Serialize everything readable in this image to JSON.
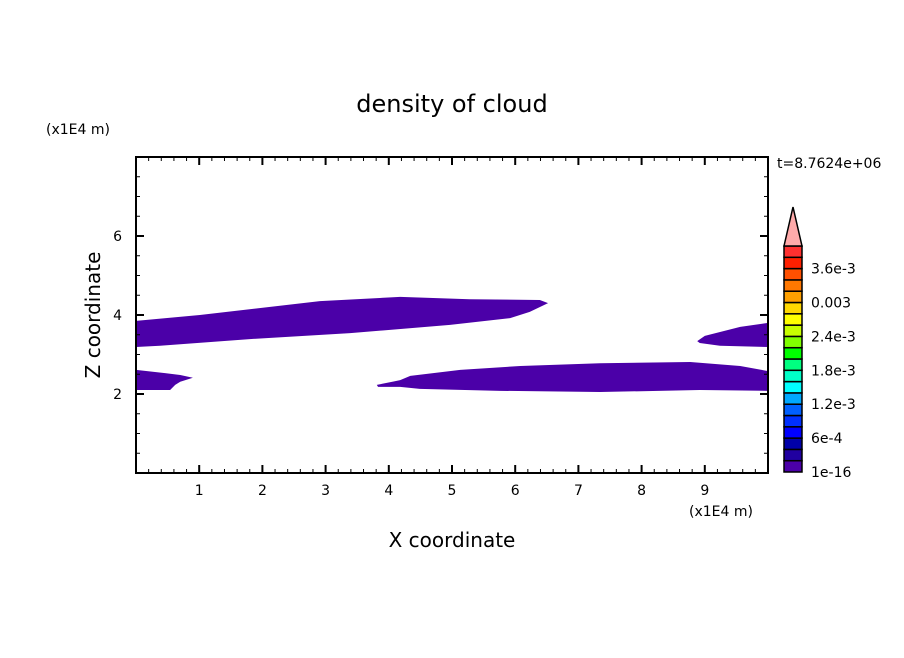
{
  "chart_data": {
    "type": "contour",
    "title": "density of cloud",
    "xlabel": "X coordinate",
    "ylabel": "Z coordinate",
    "x_unit": "(x1E4 m)",
    "y_unit": "(x1E4 m)",
    "time_label": "t=8.7624e+06",
    "xlim": [
      0,
      10
    ],
    "ylim": [
      0,
      8
    ],
    "xticks": [
      1,
      2,
      3,
      4,
      5,
      6,
      7,
      8,
      9
    ],
    "yticks": [
      2,
      4,
      6
    ],
    "fill_color": "#4b00a8",
    "regions": [
      {
        "level": "1e-16",
        "outline": [
          [
            0,
            3.85
          ],
          [
            1.01,
            4.0
          ],
          [
            2.91,
            4.35
          ],
          [
            4.18,
            4.46
          ],
          [
            5.28,
            4.4
          ],
          [
            6.39,
            4.38
          ],
          [
            6.52,
            4.3
          ],
          [
            6.23,
            4.08
          ],
          [
            5.92,
            3.92
          ],
          [
            4.97,
            3.75
          ],
          [
            3.39,
            3.54
          ],
          [
            1.8,
            3.39
          ],
          [
            0.38,
            3.22
          ],
          [
            0,
            3.19
          ]
        ]
      },
      {
        "level": "1e-16",
        "outline": [
          [
            0,
            2.61
          ],
          [
            0.46,
            2.53
          ],
          [
            0.7,
            2.48
          ],
          [
            0.9,
            2.41
          ],
          [
            0.7,
            2.31
          ],
          [
            0.62,
            2.23
          ],
          [
            0.54,
            2.1
          ],
          [
            0,
            2.1
          ]
        ]
      },
      {
        "level": "1e-16",
        "outline": [
          [
            3.81,
            2.23
          ],
          [
            4.18,
            2.35
          ],
          [
            4.34,
            2.46
          ],
          [
            5.13,
            2.61
          ],
          [
            6.08,
            2.71
          ],
          [
            7.34,
            2.78
          ],
          [
            8.77,
            2.81
          ],
          [
            9.56,
            2.71
          ],
          [
            10,
            2.58
          ],
          [
            10,
            2.08
          ],
          [
            8.92,
            2.1
          ],
          [
            7.34,
            2.05
          ],
          [
            5.76,
            2.08
          ],
          [
            4.49,
            2.13
          ],
          [
            4.18,
            2.18
          ],
          [
            3.83,
            2.18
          ]
        ]
      },
      {
        "level": "1e-16",
        "outline": [
          [
            8.88,
            3.34
          ],
          [
            9.0,
            3.47
          ],
          [
            9.56,
            3.7
          ],
          [
            10,
            3.8
          ],
          [
            10,
            3.19
          ],
          [
            9.24,
            3.22
          ],
          [
            8.92,
            3.29
          ]
        ]
      }
    ],
    "colorbar": {
      "levels_min": 0,
      "levels_step": 0.0002,
      "colors": [
        "#4b00a8",
        "#2000a0",
        "#0000a8",
        "#0000ff",
        "#0030ff",
        "#0060ff",
        "#00a8ff",
        "#00ffff",
        "#00ffc8",
        "#00ff80",
        "#00ff00",
        "#80ff00",
        "#c8ff00",
        "#ffff00",
        "#ffd800",
        "#ffa000",
        "#ff7800",
        "#ff5000",
        "#ff2000",
        "#ff3030"
      ],
      "overflow_color": "#ffaaaa",
      "tick_labels": [
        "1e-16",
        "6e-4",
        "1.2e-3",
        "1.8e-3",
        "2.4e-3",
        "0.003",
        "3.6e-3"
      ],
      "tick_every_boxes": 3
    }
  }
}
